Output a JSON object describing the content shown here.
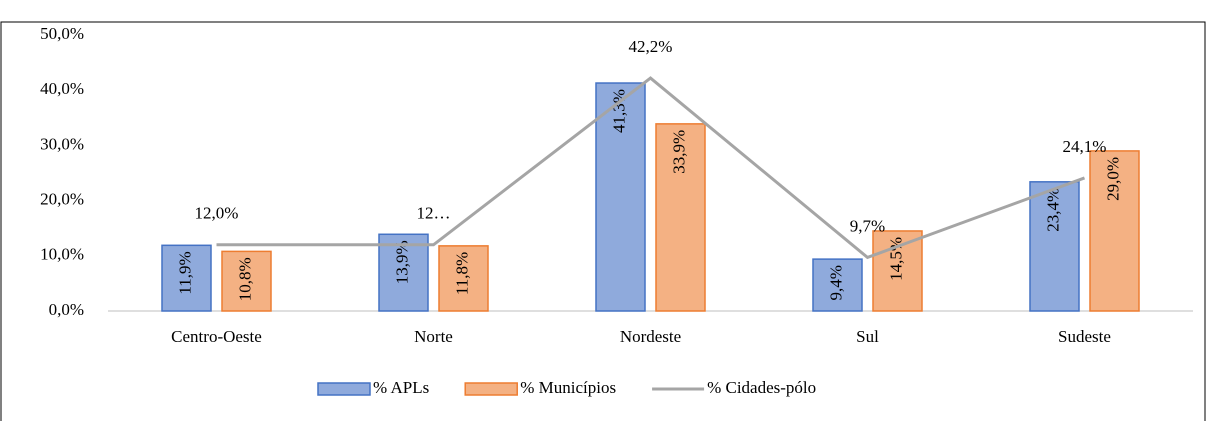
{
  "chart_data": {
    "type": "bar_line",
    "categories": [
      "Centro-Oeste",
      "Norte",
      "Nordeste",
      "Sul",
      "Sudeste"
    ],
    "series": [
      {
        "name": "% APLs",
        "type": "bar",
        "color": "#8faadc",
        "border": "#4472c4",
        "values": [
          11.9,
          13.9,
          41.3,
          9.4,
          23.4
        ],
        "value_labels": [
          "11,9%",
          "13,9%",
          "41,3%",
          "9,4%",
          "23,4%"
        ]
      },
      {
        "name": "% Municípios",
        "type": "bar",
        "color": "#f4b183",
        "border": "#ed7d31",
        "values": [
          10.8,
          11.8,
          33.9,
          14.5,
          29.0
        ],
        "value_labels": [
          "10,8%",
          "11,8%",
          "33,9%",
          "14,5%",
          "29,0%"
        ]
      },
      {
        "name": "% Cidades-pólo",
        "type": "line",
        "color": "#a5a5a5",
        "values": [
          12.0,
          12.0,
          42.2,
          9.7,
          24.1
        ],
        "value_labels": [
          "12,0%",
          "12…",
          "42,2%",
          "9,7%",
          "24,1%"
        ]
      }
    ],
    "ylim": [
      0,
      50
    ],
    "yticks": [
      {
        "value": 0,
        "label": "0,0%"
      },
      {
        "value": 10,
        "label": "10,0%"
      },
      {
        "value": 20,
        "label": "20,0%"
      },
      {
        "value": 30,
        "label": "30,0%"
      },
      {
        "value": 40,
        "label": "40,0%"
      },
      {
        "value": 50,
        "label": "50,0%"
      }
    ],
    "legend": "bottom"
  }
}
